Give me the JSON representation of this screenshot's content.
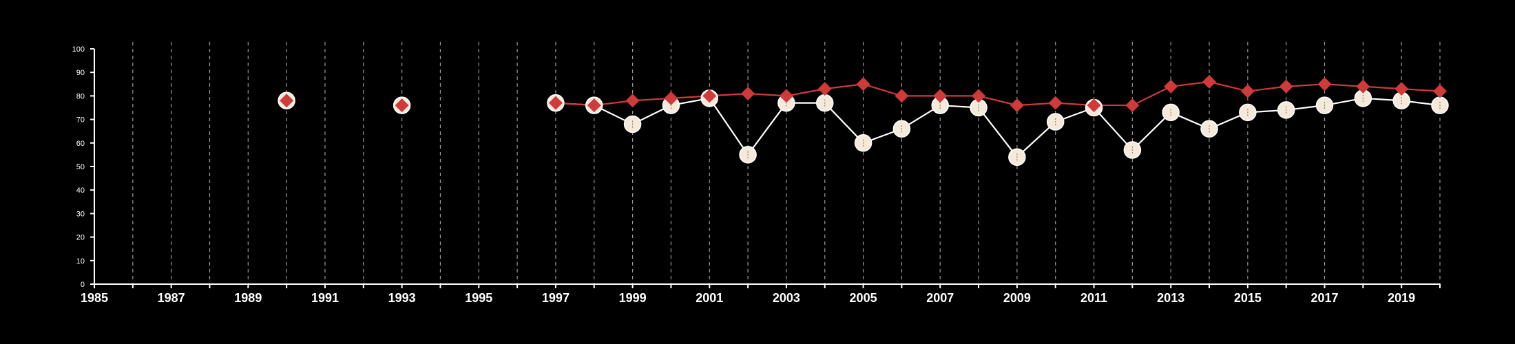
{
  "chart_data": {
    "type": "line",
    "title": "",
    "xlabel": "",
    "ylabel": "",
    "xlim": [
      1985,
      2020
    ],
    "ylim": [
      0,
      100
    ],
    "x_ticks": [
      1985,
      1986,
      1987,
      1988,
      1989,
      1990,
      1991,
      1992,
      1993,
      1994,
      1995,
      1996,
      1997,
      1998,
      1999,
      2000,
      2001,
      2002,
      2003,
      2004,
      2005,
      2006,
      2007,
      2008,
      2009,
      2010,
      2011,
      2012,
      2013,
      2014,
      2015,
      2016,
      2017,
      2018,
      2019,
      2020
    ],
    "x_tick_labels": [
      "1985",
      "1987",
      "1989",
      "1991",
      "1993",
      "1995",
      "1997",
      "1999",
      "2001",
      "2003",
      "2005",
      "2007",
      "2009",
      "2011",
      "2013",
      "2015",
      "2017",
      "2019"
    ],
    "y_ticks": [
      0,
      10,
      20,
      30,
      40,
      50,
      60,
      70,
      80,
      90,
      100
    ],
    "y_tick_labels": [
      "0",
      "10",
      "20",
      "30",
      "40",
      "50",
      "60",
      "70",
      "80",
      "90",
      "100"
    ],
    "grid": "vertical dashed lines at each year",
    "legend": "none",
    "series": [
      {
        "marker": "circle",
        "color": "#f5ead9",
        "line_color": "#ffffff",
        "points": [
          {
            "x": 1990,
            "y": 78
          },
          {
            "x": 1993,
            "y": 76
          },
          {
            "x": 1997,
            "y": 77
          },
          {
            "x": 1998,
            "y": 76
          },
          {
            "x": 1999,
            "y": 68
          },
          {
            "x": 2000,
            "y": 76
          },
          {
            "x": 2001,
            "y": 79
          },
          {
            "x": 2002,
            "y": 55
          },
          {
            "x": 2003,
            "y": 77
          },
          {
            "x": 2004,
            "y": 77
          },
          {
            "x": 2005,
            "y": 60
          },
          {
            "x": 2006,
            "y": 66
          },
          {
            "x": 2007,
            "y": 76
          },
          {
            "x": 2008,
            "y": 75
          },
          {
            "x": 2009,
            "y": 54
          },
          {
            "x": 2010,
            "y": 69
          },
          {
            "x": 2011,
            "y": 75
          },
          {
            "x": 2012,
            "y": 57
          },
          {
            "x": 2013,
            "y": 73
          },
          {
            "x": 2014,
            "y": 66
          },
          {
            "x": 2015,
            "y": 73
          },
          {
            "x": 2016,
            "y": 74
          },
          {
            "x": 2017,
            "y": 76
          },
          {
            "x": 2018,
            "y": 79
          },
          {
            "x": 2019,
            "y": 78
          },
          {
            "x": 2020,
            "y": 76
          }
        ]
      },
      {
        "marker": "diamond",
        "color": "#d03a3a",
        "line_color": "#d03a3a",
        "points": [
          {
            "x": 1990,
            "y": 78
          },
          {
            "x": 1993,
            "y": 76
          },
          {
            "x": 1997,
            "y": 77
          },
          {
            "x": 1998,
            "y": 76
          },
          {
            "x": 1999,
            "y": 78
          },
          {
            "x": 2000,
            "y": 79
          },
          {
            "x": 2001,
            "y": 80
          },
          {
            "x": 2002,
            "y": 81
          },
          {
            "x": 2003,
            "y": 80
          },
          {
            "x": 2004,
            "y": 83
          },
          {
            "x": 2005,
            "y": 85
          },
          {
            "x": 2006,
            "y": 80
          },
          {
            "x": 2007,
            "y": 80
          },
          {
            "x": 2008,
            "y": 80
          },
          {
            "x": 2009,
            "y": 76
          },
          {
            "x": 2010,
            "y": 77
          },
          {
            "x": 2011,
            "y": 76
          },
          {
            "x": 2012,
            "y": 76
          },
          {
            "x": 2013,
            "y": 84
          },
          {
            "x": 2014,
            "y": 86
          },
          {
            "x": 2015,
            "y": 82
          },
          {
            "x": 2016,
            "y": 84
          },
          {
            "x": 2017,
            "y": 85
          },
          {
            "x": 2018,
            "y": 84
          },
          {
            "x": 2019,
            "y": 83
          },
          {
            "x": 2020,
            "y": 82
          }
        ]
      }
    ]
  }
}
